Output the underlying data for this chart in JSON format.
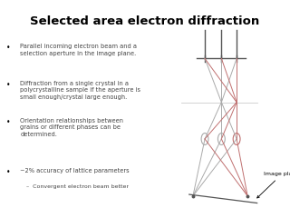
{
  "title": "Selected area electron diffraction",
  "title_fontsize": 9.5,
  "bullet_points": [
    "Parallel incoming electron beam and a\nselection aperture in the image plane.",
    "Diffraction from a single crystal in a\npolycrystalline sample if the aperture is\nsmall enough/crystal large enough.",
    "Orientation relationships between\ngrains or different phases can be\ndetermined.",
    "~2% accuracy of lattice parameters"
  ],
  "sub_bullet": "Convergent electron beam better",
  "image_plane_label": "Image plane",
  "bg_color": "#ffffff",
  "diagram_gray": "#aaaaaa",
  "diagram_red": "#c07070",
  "diagram_dark": "#555555",
  "diagram_light_gray": "#cccccc"
}
